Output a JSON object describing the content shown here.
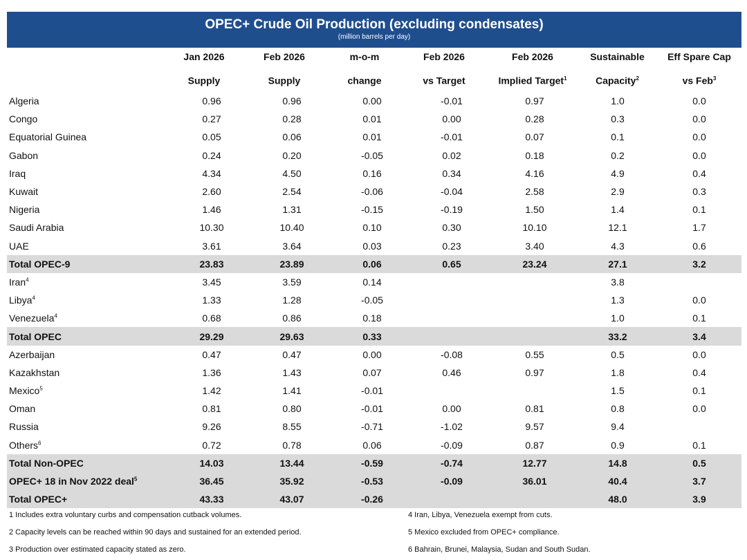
{
  "title": "OPEC+ Crude Oil Production (excluding condensates)",
  "subtitle": "(million barrels per day)",
  "columns": [
    {
      "line1": "Jan 2026",
      "line2": "Supply",
      "sup": ""
    },
    {
      "line1": "Feb 2026",
      "line2": "Supply",
      "sup": ""
    },
    {
      "line1": "m-o-m",
      "line2": "change",
      "sup": ""
    },
    {
      "line1": "Feb 2026",
      "line2": "vs Target",
      "sup": ""
    },
    {
      "line1": "Feb 2026",
      "line2": "Implied Target",
      "sup": "1"
    },
    {
      "line1": "Sustainable",
      "line2": "Capacity",
      "sup": "2"
    },
    {
      "line1": "Eff Spare Cap",
      "line2": "vs Feb",
      "sup": "3"
    }
  ],
  "rows": [
    {
      "name": "Algeria",
      "sup": "",
      "total": false,
      "values": [
        "0.96",
        "0.96",
        "0.00",
        "-0.01",
        "0.97",
        "1.0",
        "0.0"
      ]
    },
    {
      "name": "Congo",
      "sup": "",
      "total": false,
      "values": [
        "0.27",
        "0.28",
        "0.01",
        "0.00",
        "0.28",
        "0.3",
        "0.0"
      ]
    },
    {
      "name": "Equatorial Guinea",
      "sup": "",
      "total": false,
      "values": [
        "0.05",
        "0.06",
        "0.01",
        "-0.01",
        "0.07",
        "0.1",
        "0.0"
      ]
    },
    {
      "name": "Gabon",
      "sup": "",
      "total": false,
      "values": [
        "0.24",
        "0.20",
        "-0.05",
        "0.02",
        "0.18",
        "0.2",
        "0.0"
      ]
    },
    {
      "name": "Iraq",
      "sup": "",
      "total": false,
      "values": [
        "4.34",
        "4.50",
        "0.16",
        "0.34",
        "4.16",
        "4.9",
        "0.4"
      ]
    },
    {
      "name": "Kuwait",
      "sup": "",
      "total": false,
      "values": [
        "2.60",
        "2.54",
        "-0.06",
        "-0.04",
        "2.58",
        "2.9",
        "0.3"
      ]
    },
    {
      "name": "Nigeria",
      "sup": "",
      "total": false,
      "values": [
        "1.46",
        "1.31",
        "-0.15",
        "-0.19",
        "1.50",
        "1.4",
        "0.1"
      ]
    },
    {
      "name": "Saudi Arabia",
      "sup": "",
      "total": false,
      "values": [
        "10.30",
        "10.40",
        "0.10",
        "0.30",
        "10.10",
        "12.1",
        "1.7"
      ]
    },
    {
      "name": "UAE",
      "sup": "",
      "total": false,
      "values": [
        "3.61",
        "3.64",
        "0.03",
        "0.23",
        "3.40",
        "4.3",
        "0.6"
      ]
    },
    {
      "name": "Total OPEC-9",
      "sup": "",
      "total": true,
      "values": [
        "23.83",
        "23.89",
        "0.06",
        "0.65",
        "23.24",
        "27.1",
        "3.2"
      ]
    },
    {
      "name": "Iran",
      "sup": "4",
      "total": false,
      "values": [
        "3.45",
        "3.59",
        "0.14",
        "",
        "",
        "3.8",
        ""
      ]
    },
    {
      "name": "Libya",
      "sup": "4",
      "total": false,
      "values": [
        "1.33",
        "1.28",
        "-0.05",
        "",
        "",
        "1.3",
        "0.0"
      ]
    },
    {
      "name": "Venezuela",
      "sup": "4",
      "total": false,
      "values": [
        "0.68",
        "0.86",
        "0.18",
        "",
        "",
        "1.0",
        "0.1"
      ]
    },
    {
      "name": "Total OPEC",
      "sup": "",
      "total": true,
      "values": [
        "29.29",
        "29.63",
        "0.33",
        "",
        "",
        "33.2",
        "3.4"
      ]
    },
    {
      "name": "Azerbaijan",
      "sup": "",
      "total": false,
      "values": [
        "0.47",
        "0.47",
        "0.00",
        "-0.08",
        "0.55",
        "0.5",
        "0.0"
      ]
    },
    {
      "name": "Kazakhstan",
      "sup": "",
      "total": false,
      "values": [
        "1.36",
        "1.43",
        "0.07",
        "0.46",
        "0.97",
        "1.8",
        "0.4"
      ]
    },
    {
      "name": "Mexico",
      "sup": "5",
      "total": false,
      "values": [
        "1.42",
        "1.41",
        "-0.01",
        "",
        "",
        "1.5",
        "0.1"
      ]
    },
    {
      "name": "Oman",
      "sup": "",
      "total": false,
      "values": [
        "0.81",
        "0.80",
        "-0.01",
        "0.00",
        "0.81",
        "0.8",
        "0.0"
      ]
    },
    {
      "name": "Russia",
      "sup": "",
      "total": false,
      "values": [
        "9.26",
        "8.55",
        "-0.71",
        "-1.02",
        "9.57",
        "9.4",
        ""
      ]
    },
    {
      "name": "Others",
      "sup": "6",
      "total": false,
      "values": [
        "0.72",
        "0.78",
        "0.06",
        "-0.09",
        "0.87",
        "0.9",
        "0.1"
      ]
    },
    {
      "name": "Total Non-OPEC",
      "sup": "",
      "total": true,
      "values": [
        "14.03",
        "13.44",
        "-0.59",
        "-0.74",
        "12.77",
        "14.8",
        "0.5"
      ]
    },
    {
      "name": "OPEC+ 18 in Nov 2022 deal",
      "sup": "5",
      "total": true,
      "values": [
        "36.45",
        "35.92",
        "-0.53",
        "-0.09",
        "36.01",
        "40.4",
        "3.7"
      ]
    },
    {
      "name": "Total OPEC+",
      "sup": "",
      "total": true,
      "values": [
        "43.33",
        "43.07",
        "-0.26",
        "",
        "",
        "48.0",
        "3.9"
      ]
    }
  ],
  "footnotes_left": [
    "1  Includes extra voluntary curbs and compensation cutback volumes.",
    "2  Capacity levels can be reached within 90 days and sustained for an extended period.",
    "3  Production over estimated capacity stated as zero."
  ],
  "footnotes_right": [
    "4  Iran, Libya, Venezuela exempt from cuts.",
    "5  Mexico excluded from OPEC+ compliance.",
    "6  Bahrain, Brunei, Malaysia, Sudan and South Sudan."
  ]
}
